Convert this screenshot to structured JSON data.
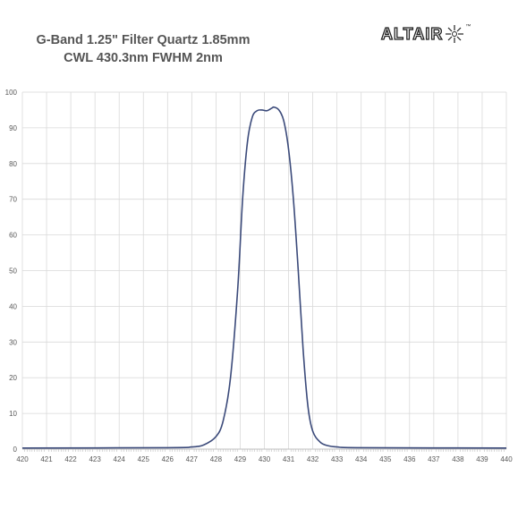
{
  "chart_data": {
    "type": "line",
    "title_lines": [
      "G-Band 1.25\" Filter Quartz 1.85mm",
      "CWL 430.3nm FWHM 2nm"
    ],
    "xlabel": "",
    "ylabel": "",
    "xlim": [
      420,
      440
    ],
    "ylim": [
      0,
      100
    ],
    "x_ticks": [
      420,
      421,
      422,
      423,
      424,
      425,
      426,
      427,
      428,
      429,
      430,
      431,
      432,
      433,
      434,
      435,
      436,
      437,
      438,
      439,
      440
    ],
    "y_ticks": [
      0,
      10,
      20,
      30,
      40,
      50,
      60,
      70,
      80,
      90,
      100
    ],
    "grid": true,
    "legend": "none",
    "series": [
      {
        "color": "#3b4a7a",
        "points": [
          [
            420,
            0.3
          ],
          [
            426,
            0.4
          ],
          [
            427,
            0.6
          ],
          [
            427.5,
            1.2
          ],
          [
            428,
            3.5
          ],
          [
            428.3,
            8
          ],
          [
            428.6,
            20
          ],
          [
            428.9,
            45
          ],
          [
            429.1,
            70
          ],
          [
            429.3,
            86
          ],
          [
            429.5,
            93
          ],
          [
            429.7,
            94.8
          ],
          [
            429.9,
            95
          ],
          [
            430.1,
            94.8
          ],
          [
            430.3,
            95.5
          ],
          [
            430.4,
            95.8
          ],
          [
            430.6,
            95
          ],
          [
            430.8,
            92
          ],
          [
            431,
            84
          ],
          [
            431.2,
            70
          ],
          [
            431.4,
            50
          ],
          [
            431.6,
            28
          ],
          [
            431.8,
            12
          ],
          [
            432,
            5
          ],
          [
            432.3,
            2
          ],
          [
            432.6,
            1
          ],
          [
            433,
            0.6
          ],
          [
            434,
            0.4
          ],
          [
            440,
            0.3
          ]
        ]
      }
    ]
  },
  "logo": {
    "text": "ALTAIR",
    "tm": "™",
    "star_icon": "star-burst-icon"
  }
}
